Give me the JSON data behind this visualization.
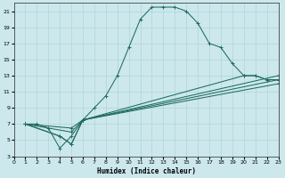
{
  "xlabel": "Humidex (Indice chaleur)",
  "bg_color": "#cce8ec",
  "grid_color": "#b0d4d8",
  "line_color": "#1f6b63",
  "xlim": [
    0,
    23
  ],
  "ylim": [
    3,
    22
  ],
  "xticks": [
    0,
    1,
    2,
    3,
    4,
    5,
    6,
    7,
    8,
    9,
    10,
    11,
    12,
    13,
    14,
    15,
    16,
    17,
    18,
    19,
    20,
    21,
    22,
    23
  ],
  "yticks": [
    3,
    5,
    7,
    9,
    11,
    13,
    15,
    17,
    19,
    21
  ],
  "curve1_x": [
    1,
    2,
    3,
    4,
    5,
    6,
    7,
    8,
    9,
    10,
    11,
    12,
    13,
    14,
    15,
    16,
    17,
    18,
    19,
    20,
    21,
    22,
    23
  ],
  "curve1_y": [
    7,
    7,
    6.5,
    4,
    5.5,
    7.5,
    9,
    10.5,
    13,
    16.5,
    20,
    21.5,
    21.5,
    21.5,
    21,
    19.5,
    17,
    16.5,
    14.5,
    13,
    13,
    12.5,
    12.5
  ],
  "curve2_x": [
    1,
    5,
    6,
    23
  ],
  "curve2_y": [
    7,
    6,
    7.5,
    13
  ],
  "curve3_x": [
    1,
    4,
    5,
    6,
    23
  ],
  "curve3_y": [
    7,
    5.5,
    4.5,
    7.5,
    12
  ],
  "curve4_x": [
    1,
    5,
    6,
    23
  ],
  "curve4_y": [
    7,
    6.5,
    7.5,
    12.5
  ],
  "curve5_x": [
    1,
    4,
    5,
    6,
    20,
    21,
    22,
    23
  ],
  "curve5_y": [
    7,
    5.5,
    4.5,
    7.5,
    13,
    13,
    12.5,
    12.5
  ]
}
